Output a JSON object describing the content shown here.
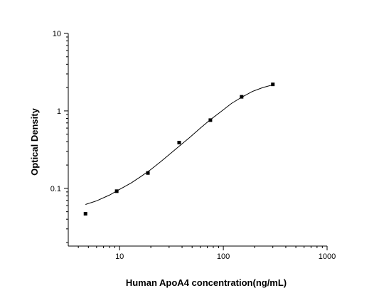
{
  "chart_data": {
    "type": "scatter",
    "title": "",
    "xlabel": "Human ApoA4 concentration(ng/mL)",
    "ylabel": "Optical Density",
    "x_scale": "log",
    "y_scale": "log",
    "xlim": [
      3.2,
      1000
    ],
    "ylim": [
      0.018,
      10
    ],
    "x_ticks": [
      10,
      100,
      1000
    ],
    "x_tick_labels": [
      "10",
      "100",
      "1000"
    ],
    "y_ticks": [
      0.1,
      1,
      10
    ],
    "y_tick_labels": [
      "0.1",
      "1",
      "10"
    ],
    "grid": false,
    "series": [
      {
        "points": [
          {
            "x": 4.69,
            "y": 0.047
          },
          {
            "x": 9.38,
            "y": 0.092
          },
          {
            "x": 18.75,
            "y": 0.158
          },
          {
            "x": 37.5,
            "y": 0.39
          },
          {
            "x": 75,
            "y": 0.76
          },
          {
            "x": 150,
            "y": 1.52
          },
          {
            "x": 300,
            "y": 2.2
          }
        ]
      }
    ],
    "fit_curve": [
      {
        "x": 4.69,
        "y": 0.062
      },
      {
        "x": 6,
        "y": 0.069
      },
      {
        "x": 8,
        "y": 0.082
      },
      {
        "x": 10,
        "y": 0.097
      },
      {
        "x": 13,
        "y": 0.118
      },
      {
        "x": 16,
        "y": 0.142
      },
      {
        "x": 20,
        "y": 0.175
      },
      {
        "x": 25,
        "y": 0.222
      },
      {
        "x": 30,
        "y": 0.272
      },
      {
        "x": 37.5,
        "y": 0.35
      },
      {
        "x": 47,
        "y": 0.45
      },
      {
        "x": 60,
        "y": 0.6
      },
      {
        "x": 75,
        "y": 0.77
      },
      {
        "x": 95,
        "y": 0.98
      },
      {
        "x": 120,
        "y": 1.25
      },
      {
        "x": 150,
        "y": 1.5
      },
      {
        "x": 190,
        "y": 1.78
      },
      {
        "x": 240,
        "y": 2.0
      },
      {
        "x": 300,
        "y": 2.17
      }
    ]
  }
}
